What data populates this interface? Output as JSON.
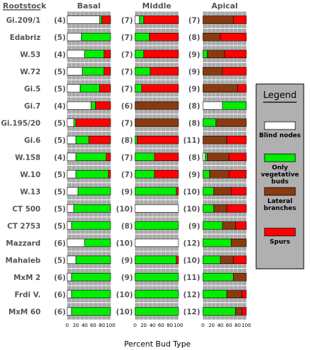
{
  "chart_data": {
    "type": "bar",
    "stacked": true,
    "orientation": "horizontal",
    "rootstock_header": "Rootstock",
    "panels": [
      "Basal",
      "Middle",
      "Apical"
    ],
    "xlabel": "Percent Bud Type",
    "xlim": [
      0,
      100
    ],
    "xticks": [
      "0",
      "20",
      "40",
      "60",
      "80",
      "100"
    ],
    "grid": true,
    "legend": {
      "title": "Legend",
      "position": "right",
      "entries": [
        {
          "key": "blind",
          "label": "Blind nodes"
        },
        {
          "key": "veg",
          "label": "Only vegetative buds"
        },
        {
          "key": "lat",
          "label": "Lateral branches"
        },
        {
          "key": "spur",
          "label": "Spurs"
        }
      ]
    },
    "colors": {
      "blind": "#ffffff",
      "veg": "#00ee00",
      "lat": "#8b3a0f",
      "spur": "#ff0000",
      "panel_bg": "#aaaaaa",
      "legend_bg": "#b0b0b0"
    },
    "rootstocks": [
      {
        "name": "Gi.209/1",
        "n": [
          "(4)",
          "(7)",
          "(7)"
        ],
        "basal": [
          75,
          5,
          0,
          20
        ],
        "middle": [
          10,
          10,
          0,
          80
        ],
        "apical": [
          0,
          0,
          70,
          30
        ]
      },
      {
        "name": "Edabriz",
        "n": [
          "(5)",
          "(7)",
          "(8)"
        ],
        "basal": [
          33,
          67,
          0,
          0
        ],
        "middle": [
          0,
          33,
          0,
          67
        ],
        "apical": [
          0,
          0,
          40,
          60
        ]
      },
      {
        "name": "W.53",
        "n": [
          "(4)",
          "(7)",
          "(9)"
        ],
        "basal": [
          40,
          45,
          0,
          15
        ],
        "middle": [
          0,
          20,
          0,
          80
        ],
        "apical": [
          0,
          10,
          40,
          50
        ]
      },
      {
        "name": "W.72",
        "n": [
          "(5)",
          "(7)",
          "(9)"
        ],
        "basal": [
          35,
          50,
          0,
          15
        ],
        "middle": [
          0,
          35,
          0,
          65
        ],
        "apical": [
          0,
          0,
          45,
          55
        ]
      },
      {
        "name": "Gi.5",
        "n": [
          "(5)",
          "(7)",
          "(9)"
        ],
        "basal": [
          30,
          45,
          0,
          25
        ],
        "middle": [
          0,
          15,
          0,
          85
        ],
        "apical": [
          0,
          0,
          80,
          20
        ]
      },
      {
        "name": "Gi.7",
        "n": [
          "(4)",
          "(6)",
          "(8)"
        ],
        "basal": [
          55,
          10,
          0,
          35
        ],
        "middle": [
          0,
          0,
          100,
          0
        ],
        "apical": [
          45,
          55,
          0,
          0
        ]
      },
      {
        "name": "Gi.195/20",
        "n": [
          "(5)",
          "(7)",
          "(8)"
        ],
        "basal": [
          15,
          5,
          0,
          80
        ],
        "middle": [
          0,
          0,
          100,
          0
        ],
        "apical": [
          0,
          30,
          70,
          0
        ]
      },
      {
        "name": "Gi.6",
        "n": [
          "(5)",
          "(8)",
          "(11)"
        ],
        "basal": [
          20,
          30,
          0,
          50
        ],
        "middle": [
          0,
          5,
          0,
          95
        ],
        "apical": [
          0,
          0,
          55,
          45
        ]
      },
      {
        "name": "W.158",
        "n": [
          "(4)",
          "(7)",
          "(8)"
        ],
        "basal": [
          20,
          70,
          0,
          10
        ],
        "middle": [
          0,
          45,
          0,
          55
        ],
        "apical": [
          5,
          5,
          50,
          40
        ]
      },
      {
        "name": "W.10",
        "n": [
          "(5)",
          "(7)",
          "(9)"
        ],
        "basal": [
          20,
          75,
          0,
          5
        ],
        "middle": [
          0,
          45,
          0,
          55
        ],
        "apical": [
          0,
          15,
          45,
          40
        ]
      },
      {
        "name": "W.13",
        "n": [
          "(5)",
          "(9)",
          "(10)"
        ],
        "basal": [
          25,
          75,
          0,
          0
        ],
        "middle": [
          0,
          95,
          0,
          5
        ],
        "apical": [
          0,
          25,
          40,
          35
        ]
      },
      {
        "name": "CT 500",
        "n": [
          "(5)",
          "(10)",
          "(10)"
        ],
        "basal": [
          15,
          85,
          0,
          0
        ],
        "middle": [
          100,
          0,
          0,
          0
        ],
        "apical": [
          0,
          25,
          30,
          45
        ]
      },
      {
        "name": "CT 2753",
        "n": [
          "(5)",
          "(8)",
          "(9)"
        ],
        "basal": [
          10,
          90,
          0,
          0
        ],
        "middle": [
          0,
          100,
          0,
          0
        ],
        "apical": [
          0,
          45,
          30,
          25
        ]
      },
      {
        "name": "Mazzard",
        "n": [
          "(6)",
          "(10)",
          "(12)"
        ],
        "basal": [
          40,
          60,
          0,
          0
        ],
        "middle": [
          100,
          0,
          0,
          0
        ],
        "apical": [
          0,
          65,
          35,
          0
        ]
      },
      {
        "name": "Mahaleb",
        "n": [
          "(5)",
          "(9)",
          "(10)"
        ],
        "basal": [
          20,
          80,
          0,
          0
        ],
        "middle": [
          0,
          95,
          0,
          5
        ],
        "apical": [
          0,
          40,
          30,
          30
        ]
      },
      {
        "name": "MxM 2",
        "n": [
          "(6)",
          "(9)",
          "(11)"
        ],
        "basal": [
          10,
          90,
          0,
          0
        ],
        "middle": [
          0,
          100,
          0,
          0
        ],
        "apical": [
          0,
          70,
          30,
          0
        ]
      },
      {
        "name": "Frdi V.",
        "n": [
          "(6)",
          "(10)",
          "(12)"
        ],
        "basal": [
          10,
          90,
          0,
          0
        ],
        "middle": [
          0,
          100,
          0,
          0
        ],
        "apical": [
          0,
          55,
          35,
          10
        ]
      },
      {
        "name": "MxM 60",
        "n": [
          "(6)",
          "(10)",
          "(12)"
        ],
        "basal": [
          10,
          90,
          0,
          0
        ],
        "middle": [
          0,
          100,
          0,
          0
        ],
        "apical": [
          0,
          75,
          15,
          10
        ]
      }
    ]
  }
}
